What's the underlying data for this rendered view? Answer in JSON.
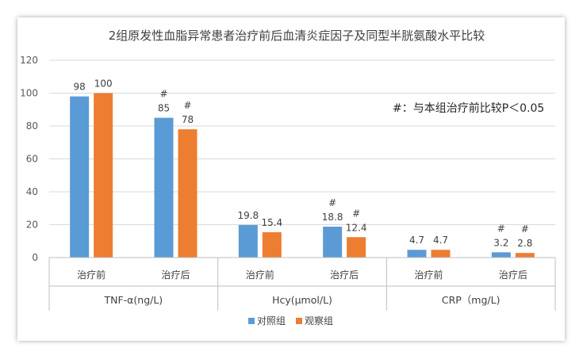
{
  "chart_data": {
    "type": "bar",
    "title": "2组原发性血脂异常患者治疗前后血清炎症因子及同型半胱氨酸水平比较",
    "ylim": [
      0,
      120
    ],
    "yticks": [
      0,
      20,
      40,
      60,
      80,
      100,
      120
    ],
    "groups": [
      {
        "label": "TNF-α(ng/L)",
        "categories": [
          "治疗前",
          "治疗后"
        ]
      },
      {
        "label": "Hcy(μmol/L)",
        "categories": [
          "治疗前",
          "治疗后"
        ]
      },
      {
        "label": "CRP（mg/L)",
        "categories": [
          "治疗前",
          "治疗后"
        ]
      }
    ],
    "series": [
      {
        "name": "对照组",
        "color": "#5B9BD5",
        "values": [
          98,
          85,
          19.8,
          18.8,
          4.7,
          3.2
        ],
        "labels": [
          "98",
          "85",
          "19.8",
          "18.8",
          "4.7",
          "3.2"
        ],
        "marks": [
          "",
          "#",
          "",
          "#",
          "",
          "#"
        ]
      },
      {
        "name": "观察组",
        "color": "#ED7D31",
        "values": [
          100,
          78,
          15.4,
          12.4,
          4.7,
          2.8
        ],
        "labels": [
          "100",
          "78",
          "15.4",
          "12.4",
          "4.7",
          "2.8"
        ],
        "marks": [
          "",
          "#",
          "",
          "#",
          "",
          "#"
        ]
      }
    ],
    "annotation": "#：与本组治疗前比较P＜0.05",
    "legend_position": "bottom",
    "grid": true
  }
}
